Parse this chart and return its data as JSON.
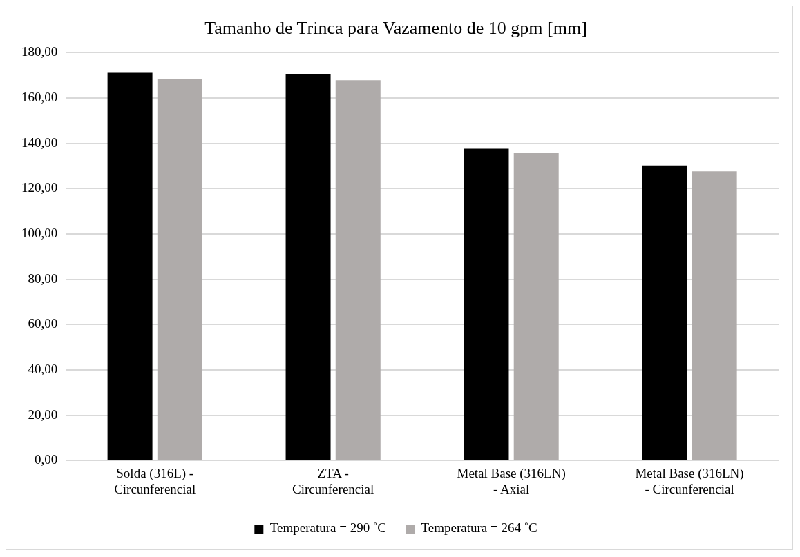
{
  "chart_data": {
    "type": "bar",
    "title": "Tamanho de Trinca para Vazamento de 10 gpm [mm]",
    "categories": [
      [
        "Solda (316L) -",
        "Circunferencial"
      ],
      [
        "ZTA -",
        "Circunferencial"
      ],
      [
        "Metal Base (316LN)",
        "- Axial"
      ],
      [
        "Metal Base (316LN)",
        "- Circunferencial"
      ]
    ],
    "series": [
      {
        "name": "Temperatura = 290 ˚C",
        "color": "#000000",
        "values": [
          171.1,
          170.6,
          137.6,
          130.2
        ]
      },
      {
        "name": "Temperatura = 264 ˚C",
        "color": "#afabaa",
        "values": [
          168.3,
          167.8,
          135.6,
          127.6
        ]
      }
    ],
    "ylim": [
      0,
      180
    ],
    "yticks": [
      {
        "value": 0,
        "label": "0,00"
      },
      {
        "value": 20,
        "label": "20,00"
      },
      {
        "value": 40,
        "label": "40,00"
      },
      {
        "value": 60,
        "label": "60,00"
      },
      {
        "value": 80,
        "label": "80,00"
      },
      {
        "value": 100,
        "label": "100,00"
      },
      {
        "value": 120,
        "label": "120,00"
      },
      {
        "value": 140,
        "label": "140,00"
      },
      {
        "value": 160,
        "label": "160,00"
      },
      {
        "value": 180,
        "label": "180,00"
      }
    ],
    "grid": "y",
    "legend": "bottom"
  }
}
